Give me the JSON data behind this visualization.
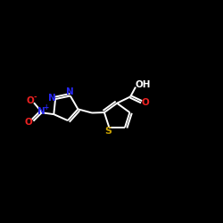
{
  "bg_color": "#000000",
  "bond_color": "#ffffff",
  "N_color": "#2626ee",
  "O_color": "#ee2222",
  "S_color": "#c8a000",
  "bond_lw": 1.4,
  "fig_w": 2.5,
  "fig_h": 2.5,
  "dpi": 100,
  "xlim": [
    0,
    12
  ],
  "ylim": [
    0,
    10
  ]
}
